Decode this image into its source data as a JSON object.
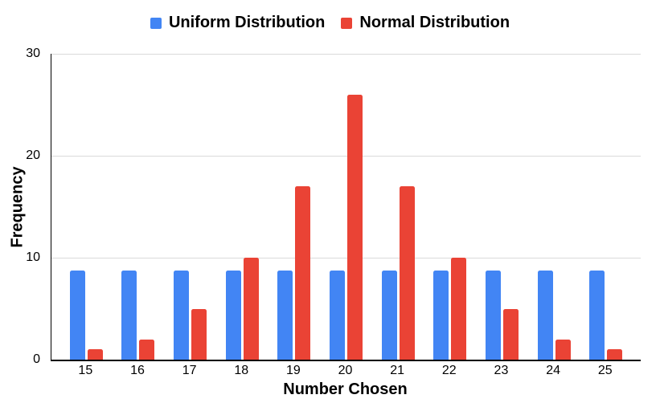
{
  "chart_data": {
    "type": "bar",
    "title": "",
    "categories": [
      "15",
      "16",
      "17",
      "18",
      "19",
      "20",
      "21",
      "22",
      "23",
      "24",
      "25"
    ],
    "series": [
      {
        "name": "Uniform Distribution",
        "color": "#4285F4",
        "values": [
          8.73,
          8.73,
          8.73,
          8.73,
          8.73,
          8.73,
          8.73,
          8.73,
          8.73,
          8.73,
          8.73
        ]
      },
      {
        "name": "Normal Distribution",
        "color": "#EA4335",
        "values": [
          1,
          2,
          5,
          10,
          17,
          26,
          17,
          10,
          5,
          2,
          1
        ]
      }
    ],
    "xlabel": "Number Chosen",
    "ylabel": "Frequency",
    "ylim": [
      0,
      30
    ],
    "yticks": [
      0,
      10,
      20,
      30
    ],
    "grid": true,
    "legend_position": "top",
    "background_color": "#ffffff",
    "gridline_color": "#dadada",
    "axis_color": "#000000"
  }
}
